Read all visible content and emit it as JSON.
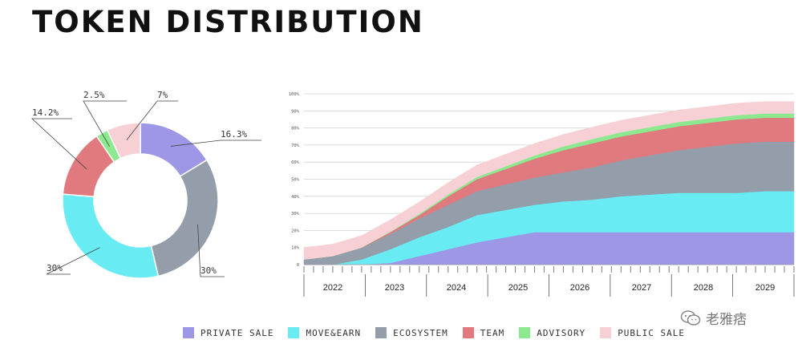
{
  "title": "TOKEN DISTRIBUTION",
  "colors": {
    "private_sale": "#9d97e6",
    "move_earn": "#69ebf4",
    "ecosystem": "#949eab",
    "team": "#e07a7e",
    "advisory": "#8ce98f",
    "public_sale": "#f7d0d5"
  },
  "legend": [
    {
      "key": "private_sale",
      "label": "PRIVATE SALE"
    },
    {
      "key": "move_earn",
      "label": "MOVE&EARN"
    },
    {
      "key": "ecosystem",
      "label": "ECOSYSTEM"
    },
    {
      "key": "team",
      "label": "TEAM"
    },
    {
      "key": "advisory",
      "label": "ADVISORY"
    },
    {
      "key": "public_sale",
      "label": "PUBLIC SALE"
    }
  ],
  "watermark": "老雅痞",
  "chart_data": [
    {
      "type": "pie",
      "subtype": "donut",
      "title": "",
      "slices": [
        {
          "name": "PRIVATE SALE",
          "value": 16.3,
          "label": "16.3%",
          "color": "#9d97e6"
        },
        {
          "name": "ECOSYSTEM",
          "value": 30,
          "label": "30%",
          "color": "#949eab"
        },
        {
          "name": "MOVE&EARN",
          "value": 30,
          "label": "30%",
          "color": "#69ebf4"
        },
        {
          "name": "TEAM",
          "value": 14.2,
          "label": "14.2%",
          "color": "#e07a7e"
        },
        {
          "name": "ADVISORY",
          "value": 2.5,
          "label": "2.5%",
          "color": "#8ce98f"
        },
        {
          "name": "PUBLIC SALE",
          "value": 7,
          "label": "7%",
          "color": "#f7d0d5"
        }
      ]
    },
    {
      "type": "area",
      "stacked": true,
      "title": "",
      "xlabel": "",
      "ylabel": "",
      "ylim": [
        0,
        100
      ],
      "yticks": [
        "0",
        "10%",
        "20%",
        "30%",
        "40%",
        "50%",
        "60%",
        "70%",
        "80%",
        "90%",
        "100%"
      ],
      "x": [
        0,
        6,
        12,
        18,
        24,
        30,
        36,
        42,
        48,
        54,
        60,
        66,
        72,
        78,
        84,
        90,
        96,
        102
      ],
      "x_year_labels": [
        "2022",
        "2023",
        "2024",
        "2025",
        "2026",
        "2027",
        "2028",
        "2029"
      ],
      "series": [
        {
          "name": "PRIVATE SALE",
          "key": "private_sale",
          "values": [
            0,
            0,
            0,
            1,
            5,
            9,
            13,
            16,
            19,
            19,
            19,
            19,
            19,
            19,
            19,
            19,
            19,
            19
          ]
        },
        {
          "name": "MOVE&EARN",
          "key": "move_earn",
          "values": [
            0,
            0,
            3,
            8,
            11,
            13,
            16,
            16,
            16,
            18,
            19,
            21,
            22,
            23,
            23,
            23,
            24,
            24
          ]
        },
        {
          "name": "ECOSYSTEM",
          "key": "ecosystem",
          "values": [
            3,
            5,
            7,
            9,
            11,
            13,
            14,
            15,
            16,
            17,
            19,
            21,
            23,
            25,
            27,
            29,
            29,
            29
          ]
        },
        {
          "name": "TEAM",
          "key": "team",
          "values": [
            0,
            0,
            0,
            1,
            2,
            5,
            7,
            9,
            11,
            13,
            14,
            14,
            14,
            14,
            14,
            14,
            14,
            14
          ]
        },
        {
          "name": "ADVISORY",
          "key": "advisory",
          "values": [
            0,
            0,
            0,
            0.3,
            0.7,
            1,
            1.3,
            1.6,
            1.9,
            2.2,
            2.5,
            2.5,
            2.5,
            2.5,
            2.5,
            2.5,
            2.5,
            2.5
          ]
        },
        {
          "name": "PUBLIC SALE",
          "key": "public_sale",
          "values": [
            7,
            7,
            7,
            7,
            7,
            7,
            7,
            7,
            7,
            7,
            7,
            7,
            7,
            7,
            7,
            7,
            7,
            7
          ]
        }
      ]
    }
  ]
}
